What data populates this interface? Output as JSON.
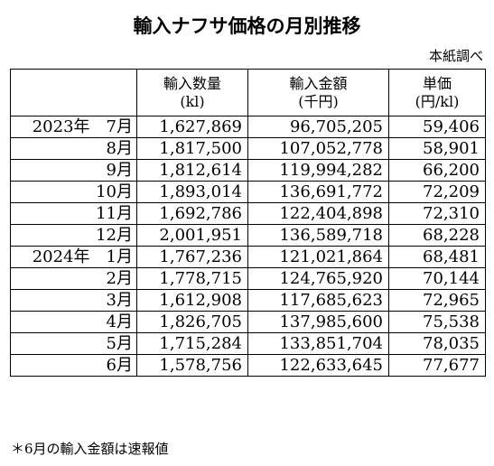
{
  "title": "輸入ナフサ価格の月別推移",
  "source": "本紙調べ",
  "table": {
    "headers": [
      {
        "line1": "",
        "line2": ""
      },
      {
        "line1": "輸入数量",
        "line2": "(kl)"
      },
      {
        "line1": "輸入金額",
        "line2": "(千円)"
      },
      {
        "line1": "単価",
        "line2": "(円/kl)"
      }
    ],
    "rows": [
      {
        "period": "2023年　7月",
        "quantity": "1,627,869",
        "amount": "96,705,205",
        "unit_price": "59,406"
      },
      {
        "period": "8月",
        "quantity": "1,817,500",
        "amount": "107,052,778",
        "unit_price": "58,901"
      },
      {
        "period": "9月",
        "quantity": "1,812,614",
        "amount": "119,994,282",
        "unit_price": "66,200"
      },
      {
        "period": "10月",
        "quantity": "1,893,014",
        "amount": "136,691,772",
        "unit_price": "72,209"
      },
      {
        "period": "11月",
        "quantity": "1,692,786",
        "amount": "122,404,898",
        "unit_price": "72,310"
      },
      {
        "period": "12月",
        "quantity": "2,001,951",
        "amount": "136,589,718",
        "unit_price": "68,228"
      },
      {
        "period": "2024年　1月",
        "quantity": "1,767,236",
        "amount": "121,021,864",
        "unit_price": "68,481"
      },
      {
        "period": "2月",
        "quantity": "1,778,715",
        "amount": "124,765,920",
        "unit_price": "70,144"
      },
      {
        "period": "3月",
        "quantity": "1,612,908",
        "amount": "117,685,623",
        "unit_price": "72,965"
      },
      {
        "period": "4月",
        "quantity": "1,826,705",
        "amount": "137,985,600",
        "unit_price": "75,538"
      },
      {
        "period": "5月",
        "quantity": "1,715,284",
        "amount": "133,851,704",
        "unit_price": "78,035"
      },
      {
        "period": "6月",
        "quantity": "1,578,756",
        "amount": "122,633,645",
        "unit_price": "77,677"
      }
    ]
  },
  "note": "＊6月の輸入金額は速報値"
}
